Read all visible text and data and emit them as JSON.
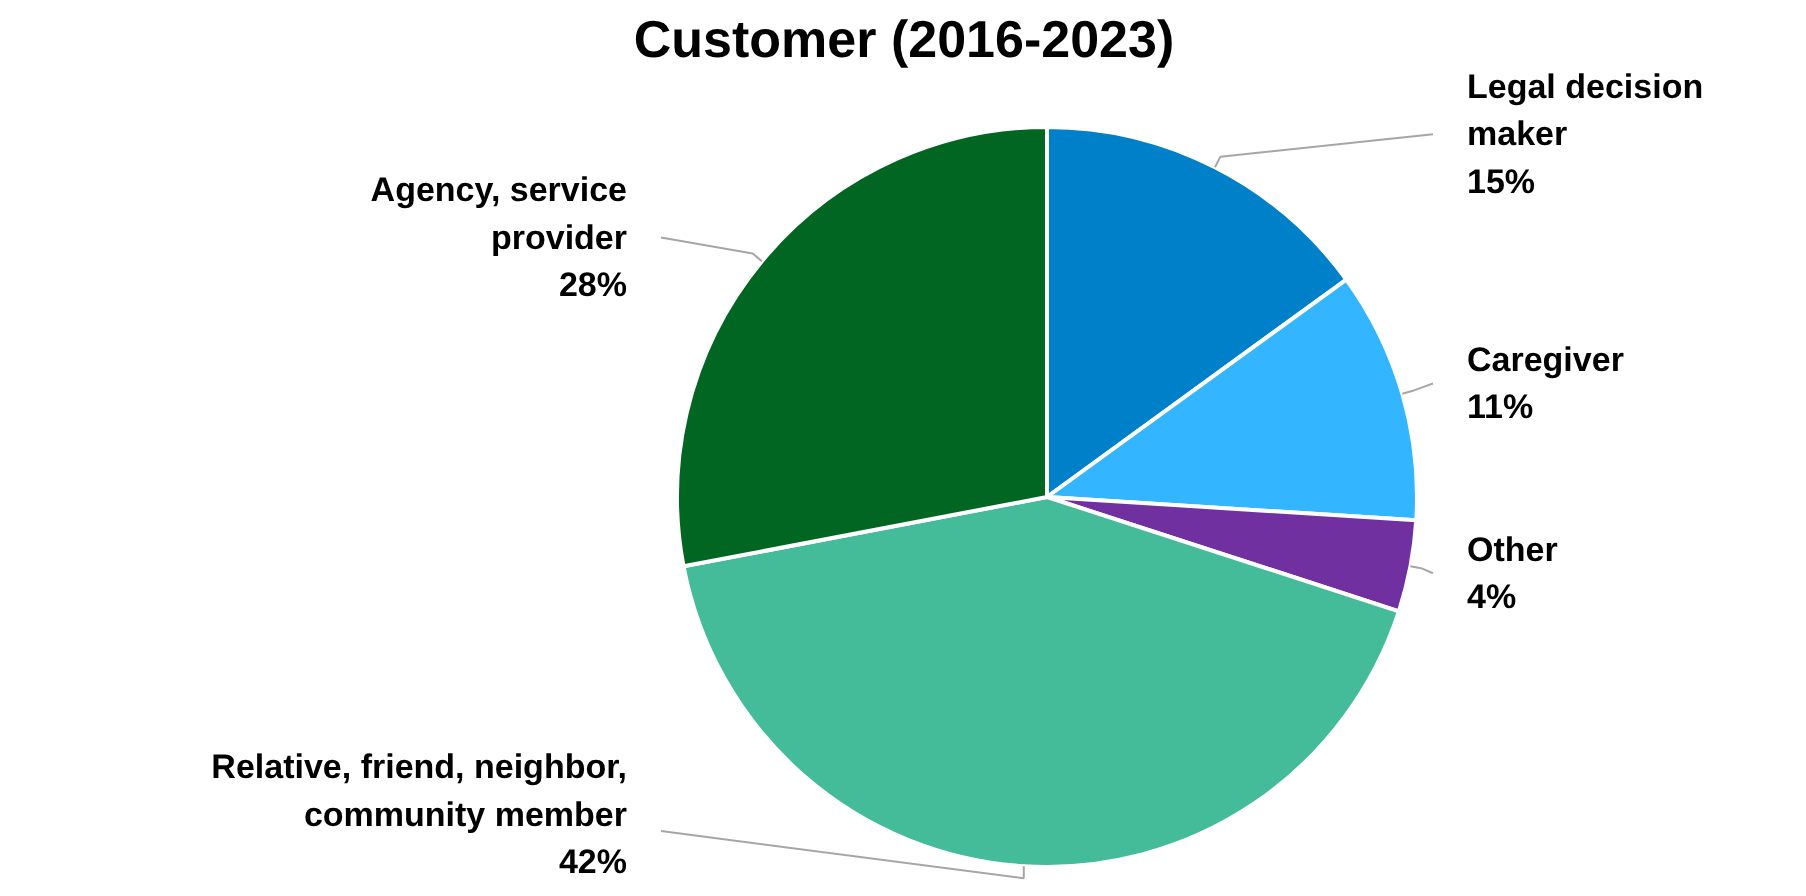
{
  "chart_data": {
    "type": "pie",
    "title": "Customer (2016-2023)",
    "categories": [
      "Legal decision maker",
      "Caregiver",
      "Other",
      "Relative, friend, neighbor, community member",
      "Agency, service provider"
    ],
    "values": [
      15,
      11,
      4,
      42,
      28
    ],
    "value_labels": [
      "15%",
      "11%",
      "4%",
      "42%",
      "28%"
    ],
    "colors": [
      "#0080c8",
      "#33b5ff",
      "#7030a0",
      "#44bb99",
      "#006622"
    ]
  }
}
